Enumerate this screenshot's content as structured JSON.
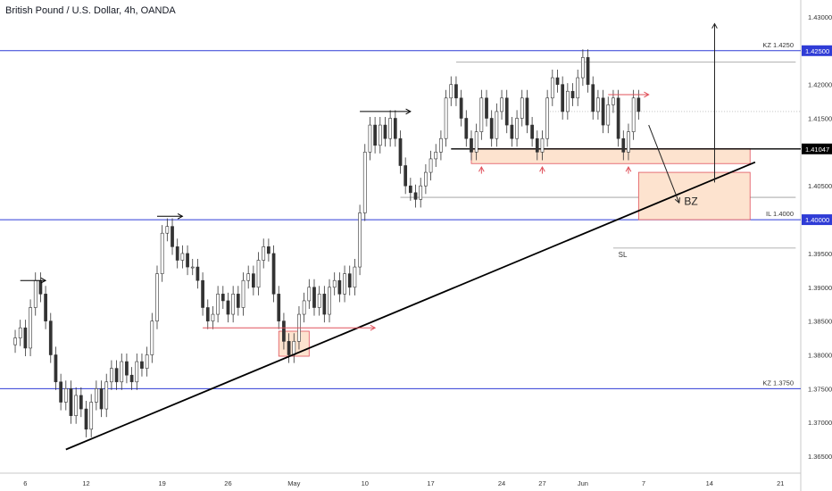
{
  "header": {
    "title": "British Pound / U.S. Dollar, 4h, OANDA"
  },
  "colors": {
    "bull": "#3a3a3a",
    "bear": "#3a3a3a",
    "level_line": "#2f3cd6",
    "support_line": "#000000",
    "zone_fill": "#fde3cf",
    "zone_stroke": "#e0505a",
    "grey_line": "#9a9a9a",
    "arrow_red": "#e0505a",
    "axis_text": "#333333",
    "price_tag": "#2f3cd6",
    "price_tag_current": "#000000"
  },
  "chart_data": {
    "type": "candlestick",
    "title": "British Pound / U.S. Dollar, 4h, OANDA",
    "x_tick_labels": [
      "6",
      "12",
      "19",
      "26",
      "May",
      "10",
      "17",
      "24",
      "27",
      "Jun",
      "7",
      "14",
      "21"
    ],
    "x_tick_index": [
      2,
      14,
      29,
      42,
      55,
      69,
      82,
      96,
      104,
      112,
      124,
      137,
      151
    ],
    "x_range_index": [
      -3,
      155
    ],
    "y_ticks": [
      "1.43000",
      "1.42000",
      "1.41500",
      "1.40500",
      "1.39500",
      "1.39000",
      "1.38500",
      "1.38000",
      "1.37500",
      "1.37000",
      "1.36500"
    ],
    "y_tick_values": [
      1.43,
      1.42,
      1.415,
      1.405,
      1.395,
      1.39,
      1.385,
      1.38,
      1.375,
      1.37,
      1.365
    ],
    "ylim": [
      1.3625,
      1.4325
    ],
    "price_tags": [
      {
        "label": "1.42500",
        "value": 1.425,
        "style": "level"
      },
      {
        "label": "1.41047",
        "value": 1.41047,
        "style": "current"
      },
      {
        "label": "1.40000",
        "value": 1.4,
        "style": "level"
      }
    ],
    "levels": [
      {
        "label": "KZ 1.4250",
        "value": 1.425
      },
      {
        "label": "IL 1.4000",
        "value": 1.4
      },
      {
        "label": "KZ 1.3750",
        "value": 1.375
      }
    ],
    "annotations": {
      "sl": "SL",
      "bz": "BZ"
    },
    "series": [
      {
        "points": [
          [
            0,
            1.3825
          ],
          [
            1,
            1.384
          ],
          [
            2,
            1.381
          ],
          [
            3,
            1.387
          ],
          [
            4,
            1.391
          ],
          [
            5,
            1.389
          ],
          [
            6,
            1.385
          ],
          [
            7,
            1.38
          ],
          [
            8,
            1.376
          ],
          [
            9,
            1.373
          ],
          [
            10,
            1.375
          ],
          [
            11,
            1.371
          ],
          [
            12,
            1.374
          ],
          [
            13,
            1.372
          ],
          [
            14,
            1.369
          ],
          [
            15,
            1.373
          ],
          [
            16,
            1.375
          ],
          [
            17,
            1.372
          ],
          [
            18,
            1.376
          ],
          [
            19,
            1.378
          ],
          [
            20,
            1.376
          ],
          [
            21,
            1.379
          ],
          [
            22,
            1.377
          ],
          [
            23,
            1.376
          ],
          [
            24,
            1.379
          ],
          [
            25,
            1.378
          ],
          [
            26,
            1.38
          ],
          [
            27,
            1.385
          ],
          [
            28,
            1.392
          ],
          [
            29,
            1.398
          ],
          [
            30,
            1.399
          ],
          [
            31,
            1.396
          ],
          [
            32,
            1.394
          ],
          [
            33,
            1.395
          ],
          [
            34,
            1.393
          ],
          [
            35,
            1.393
          ],
          [
            36,
            1.391
          ],
          [
            37,
            1.387
          ],
          [
            38,
            1.385
          ],
          [
            39,
            1.386
          ],
          [
            40,
            1.389
          ],
          [
            41,
            1.388
          ],
          [
            42,
            1.386
          ],
          [
            43,
            1.389
          ],
          [
            44,
            1.387
          ],
          [
            45,
            1.391
          ],
          [
            46,
            1.392
          ],
          [
            47,
            1.39
          ],
          [
            48,
            1.394
          ],
          [
            49,
            1.396
          ],
          [
            50,
            1.395
          ],
          [
            51,
            1.389
          ],
          [
            52,
            1.385
          ],
          [
            53,
            1.382
          ],
          [
            54,
            1.38
          ],
          [
            55,
            1.382
          ],
          [
            56,
            1.386
          ],
          [
            57,
            1.388
          ],
          [
            58,
            1.39
          ],
          [
            59,
            1.387
          ],
          [
            60,
            1.389
          ],
          [
            61,
            1.386
          ],
          [
            62,
            1.39
          ],
          [
            63,
            1.391
          ],
          [
            64,
            1.389
          ],
          [
            65,
            1.392
          ],
          [
            66,
            1.39
          ],
          [
            67,
            1.393
          ],
          [
            68,
            1.401
          ],
          [
            69,
            1.41
          ],
          [
            70,
            1.414
          ],
          [
            71,
            1.411
          ],
          [
            72,
            1.414
          ],
          [
            73,
            1.412
          ],
          [
            74,
            1.415
          ],
          [
            75,
            1.412
          ],
          [
            76,
            1.408
          ],
          [
            77,
            1.405
          ],
          [
            78,
            1.404
          ],
          [
            79,
            1.403
          ],
          [
            80,
            1.405
          ],
          [
            81,
            1.407
          ],
          [
            82,
            1.409
          ],
          [
            83,
            1.41
          ],
          [
            84,
            1.412
          ],
          [
            85,
            1.418
          ],
          [
            86,
            1.42
          ],
          [
            87,
            1.418
          ],
          [
            88,
            1.415
          ],
          [
            89,
            1.412
          ],
          [
            90,
            1.41
          ],
          [
            91,
            1.413
          ],
          [
            92,
            1.418
          ],
          [
            93,
            1.415
          ],
          [
            94,
            1.412
          ],
          [
            95,
            1.416
          ],
          [
            96,
            1.418
          ],
          [
            97,
            1.414
          ],
          [
            98,
            1.412
          ],
          [
            99,
            1.415
          ],
          [
            100,
            1.418
          ],
          [
            101,
            1.414
          ],
          [
            102,
            1.412
          ],
          [
            103,
            1.41
          ],
          [
            104,
            1.412
          ],
          [
            105,
            1.418
          ],
          [
            106,
            1.421
          ],
          [
            107,
            1.42
          ],
          [
            108,
            1.416
          ],
          [
            109,
            1.419
          ],
          [
            110,
            1.418
          ],
          [
            111,
            1.421
          ],
          [
            112,
            1.424
          ],
          [
            113,
            1.42
          ],
          [
            114,
            1.416
          ],
          [
            115,
            1.418
          ],
          [
            116,
            1.414
          ],
          [
            117,
            1.417
          ],
          [
            118,
            1.418
          ],
          [
            119,
            1.412
          ],
          [
            120,
            1.41
          ],
          [
            121,
            1.413
          ],
          [
            122,
            1.418
          ],
          [
            123,
            1.416
          ]
        ]
      }
    ]
  }
}
